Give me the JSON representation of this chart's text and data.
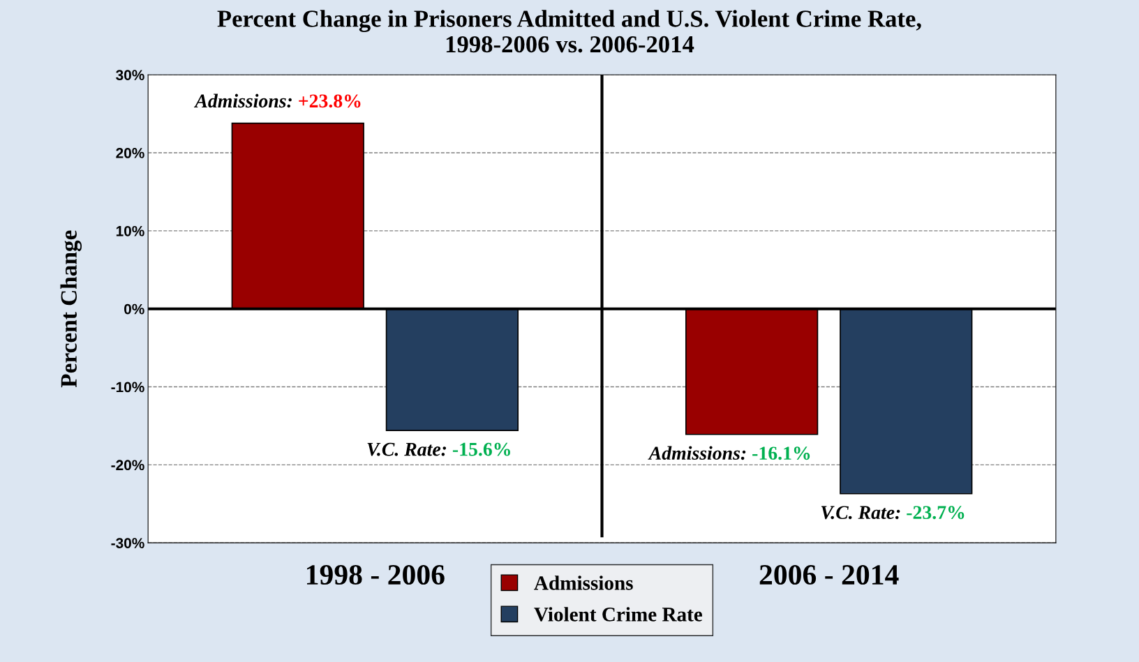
{
  "chart_data": {
    "type": "bar",
    "title": "Percent Change in Prisoners Admitted and U.S. Violent Crime Rate,\n1998-2006 vs. 2006-2014",
    "ylabel": "Percent Change",
    "categories": [
      "1998 - 2006",
      "2006 - 2014"
    ],
    "series": [
      {
        "name": "Admissions",
        "color": "#990000",
        "values": [
          23.8,
          -16.1
        ],
        "value_labels": [
          "+23.8%",
          "-16.1%"
        ]
      },
      {
        "name": "Violent Crime Rate",
        "color": "#243f60",
        "values": [
          -15.6,
          -23.7
        ],
        "value_labels": [
          "-15.6%",
          "-23.7%"
        ]
      }
    ],
    "annotations": [
      "Admissions:",
      "Admissions:",
      "V.C. Rate:",
      "V.C. Rate:"
    ],
    "ylim": [
      -30,
      30
    ],
    "yticks": [
      {
        "value": -30,
        "label": "-30%"
      },
      {
        "value": -20,
        "label": "-20%"
      },
      {
        "value": -10,
        "label": "-10%"
      },
      {
        "value": 0,
        "label": "0%"
      },
      {
        "value": 10,
        "label": "10%"
      },
      {
        "value": 20,
        "label": "20%"
      },
      {
        "value": 30,
        "label": "30%"
      }
    ],
    "grid": "y",
    "legend": "bottom"
  }
}
